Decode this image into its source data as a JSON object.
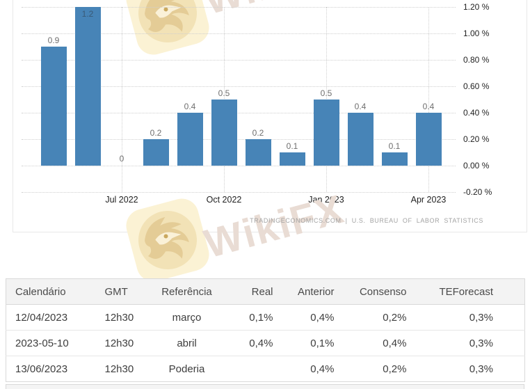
{
  "watermark": {
    "brand": "WikiFX"
  },
  "chart_data": {
    "type": "bar",
    "title": "",
    "xlabel": "",
    "ylabel": "",
    "ylim": [
      -0.2,
      1.2
    ],
    "grid": "dotted",
    "legend": "none",
    "bar_color": "#4784b7",
    "values": [
      0.9,
      1.2,
      0,
      0.2,
      0.4,
      0.5,
      0.2,
      0.1,
      0.5,
      0.4,
      0.1,
      0.4
    ],
    "bar_value_labels": [
      "0.9",
      "1.2",
      "0",
      "0.2",
      "0.4",
      "0.5",
      "0.2",
      "0.1",
      "0.5",
      "0.4",
      "0.1",
      "0.4"
    ],
    "x_ticks": [
      {
        "month_index": 2,
        "label": "Jul 2022"
      },
      {
        "month_index": 5,
        "label": "Oct 2022"
      },
      {
        "month_index": 8,
        "label": "Jan 2023"
      },
      {
        "month_index": 11,
        "label": "Apr 2023"
      }
    ],
    "y_tick_labels": [
      "1.20 %",
      "1.00 %",
      "0.80 %",
      "0.60 %",
      "0.40 %",
      "0.20 %",
      "0.00 %",
      "-0.20 %"
    ],
    "source_attribution": "TRADINGECONOMICS.COM | U.S. BUREAU OF LABOR STATISTICS"
  },
  "table": {
    "headers": [
      "Calendário",
      "GMT",
      "Referência",
      "Real",
      "Anterior",
      "Consenso",
      "TEForecast"
    ],
    "rows": [
      [
        "12/04/2023",
        "12h30",
        "março",
        "0,1%",
        "0,4%",
        "0,2%",
        "0,3%"
      ],
      [
        "2023-05-10",
        "12h30",
        "abril",
        "0,4%",
        "0,1%",
        "0,4%",
        "0,3%"
      ],
      [
        "13/06/2023",
        "12h30",
        "Poderia",
        "",
        "0,4%",
        "0,2%",
        "0,3%"
      ]
    ]
  }
}
